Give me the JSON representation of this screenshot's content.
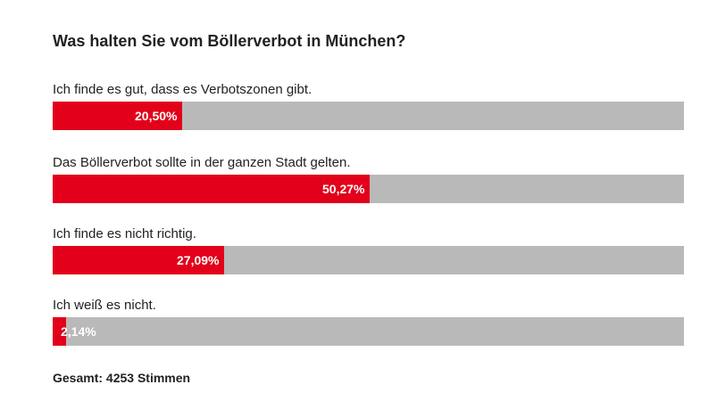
{
  "chart_data": {
    "type": "bar",
    "orientation": "horizontal",
    "title": "Was halten Sie vom Böllerverbot in München?",
    "categories": [
      "Ich finde es gut, dass es Verbotszonen gibt.",
      "Das Böllerverbot sollte in der ganzen Stadt gelten.",
      "Ich finde es nicht richtig.",
      "Ich weiß es nicht."
    ],
    "values": [
      20.5,
      50.27,
      27.09,
      2.14
    ],
    "value_labels": [
      "20,50%",
      "50,27%",
      "27,09%",
      "2,14%"
    ],
    "xlim": [
      0,
      100
    ],
    "unit": "%",
    "total_label": "Gesamt: 4253 Stimmen"
  },
  "colors": {
    "fill": "#e2001a",
    "track": "#b9b9b9"
  }
}
